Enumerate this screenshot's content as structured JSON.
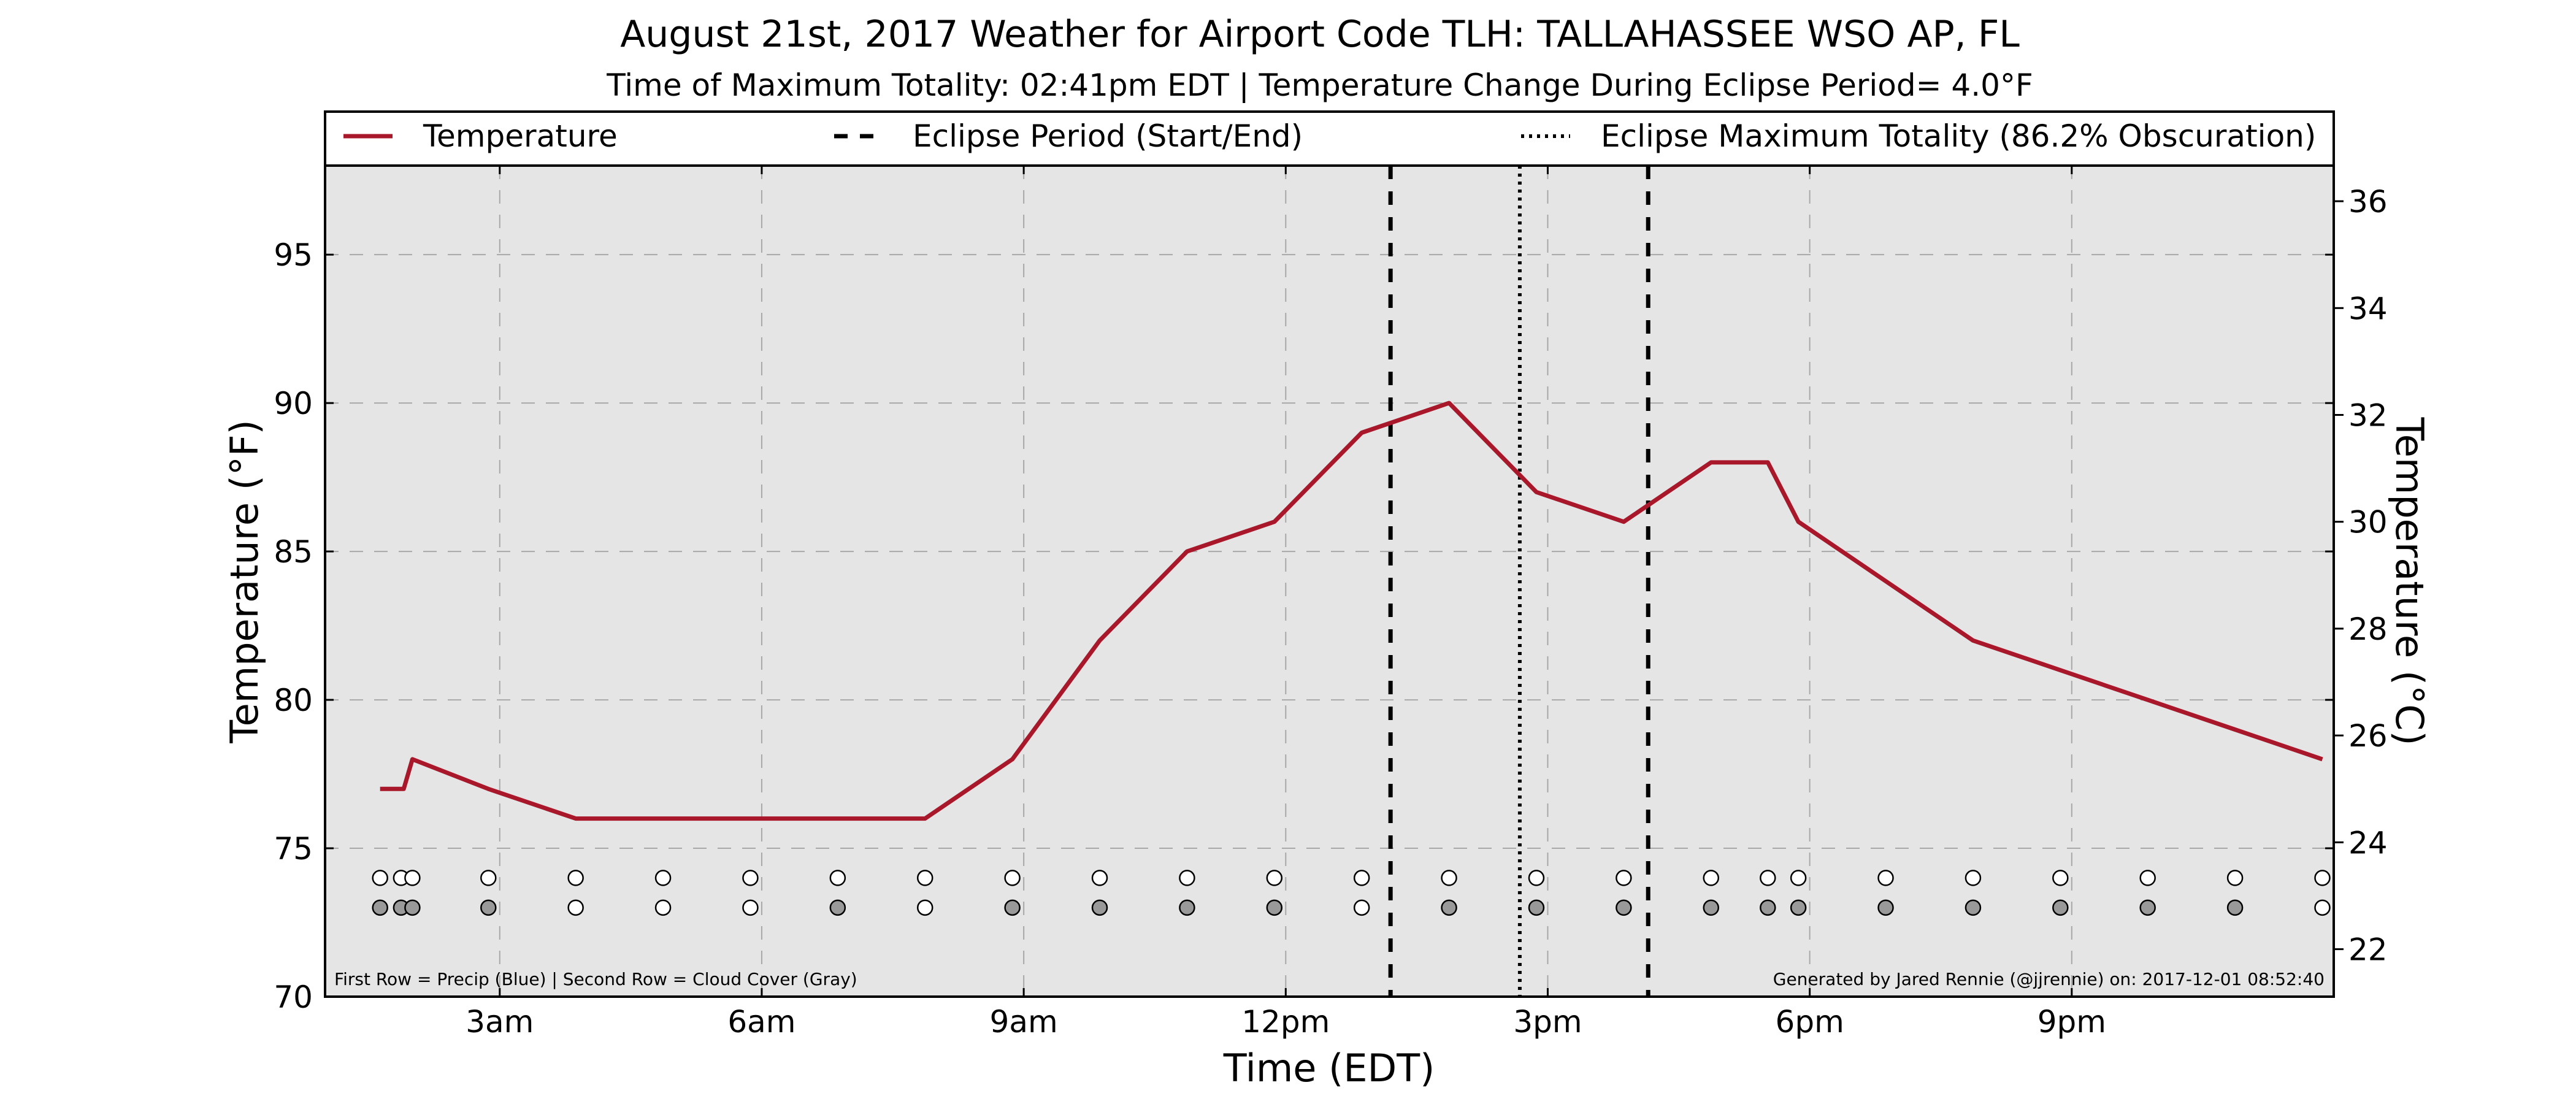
{
  "chart_data": {
    "type": "line",
    "title": "August 21st, 2017 Weather for Airport Code TLH: TALLAHASSEE WSO AP, FL",
    "subtitle": "Time of Maximum Totality: 02:41pm EDT | Temperature Change During Eclipse Period= 4.0°F",
    "xlabel": "Time (EDT)",
    "ylabel_left": "Temperature (°F)",
    "ylabel_right": "Temperature (°C)",
    "xlim_hours": [
      1.0,
      24.0
    ],
    "ylim_f": [
      70,
      98
    ],
    "x_ticks": [
      {
        "hour": 3,
        "label": "3am"
      },
      {
        "hour": 6,
        "label": "6am"
      },
      {
        "hour": 9,
        "label": "9am"
      },
      {
        "hour": 12,
        "label": "12pm"
      },
      {
        "hour": 15,
        "label": "3pm"
      },
      {
        "hour": 18,
        "label": "6pm"
      },
      {
        "hour": 21,
        "label": "9pm"
      }
    ],
    "y_ticks_left": [
      {
        "v": 70,
        "label": "70"
      },
      {
        "v": 75,
        "label": "75"
      },
      {
        "v": 80,
        "label": "80"
      },
      {
        "v": 85,
        "label": "85"
      },
      {
        "v": 90,
        "label": "90"
      },
      {
        "v": 95,
        "label": "95"
      }
    ],
    "y_ticks_right": [
      {
        "v": 22,
        "label": "22"
      },
      {
        "v": 24,
        "label": "24"
      },
      {
        "v": 26,
        "label": "26"
      },
      {
        "v": 28,
        "label": "28"
      },
      {
        "v": 30,
        "label": "30"
      },
      {
        "v": 32,
        "label": "32"
      },
      {
        "v": 34,
        "label": "34"
      },
      {
        "v": 36,
        "label": "36"
      }
    ],
    "grid": true,
    "legend_position": "top",
    "colors": {
      "temperature": "#a9172a",
      "plot_bg": "#e5e5e5",
      "cloud_fill": "#999999",
      "clear_fill": "#ffffff"
    },
    "series": [
      {
        "name": "Temperature",
        "points": [
          [
            1.63,
            77
          ],
          [
            1.9,
            77
          ],
          [
            2.0,
            78
          ],
          [
            2.87,
            77
          ],
          [
            3.87,
            76
          ],
          [
            4.87,
            76
          ],
          [
            5.87,
            76
          ],
          [
            6.87,
            76
          ],
          [
            7.87,
            76
          ],
          [
            8.87,
            78
          ],
          [
            9.87,
            82
          ],
          [
            10.87,
            85
          ],
          [
            11.87,
            86
          ],
          [
            12.87,
            89
          ],
          [
            13.87,
            90
          ],
          [
            14.87,
            87
          ],
          [
            15.87,
            86
          ],
          [
            16.87,
            88
          ],
          [
            17.52,
            88
          ],
          [
            17.87,
            86
          ],
          [
            18.87,
            84
          ],
          [
            19.87,
            82
          ],
          [
            20.87,
            81
          ],
          [
            21.87,
            80
          ],
          [
            22.87,
            79
          ],
          [
            23.87,
            78
          ]
        ]
      }
    ],
    "eclipse": {
      "start_hour": 13.2,
      "end_hour": 16.15,
      "max_hour": 14.68,
      "legend_period": "Eclipse Period (Start/End)",
      "legend_max": "Eclipse Maximum Totality (86.2% Obscuration)"
    },
    "markers": {
      "row1_precip_y": 74.0,
      "row2_cloud_y": 73.0,
      "points": [
        {
          "hour": 1.63,
          "precip": false,
          "cloud": true
        },
        {
          "hour": 1.87,
          "precip": false,
          "cloud": true
        },
        {
          "hour": 2.0,
          "precip": false,
          "cloud": true
        },
        {
          "hour": 2.87,
          "precip": false,
          "cloud": true
        },
        {
          "hour": 3.87,
          "precip": false,
          "cloud": false
        },
        {
          "hour": 4.87,
          "precip": false,
          "cloud": false
        },
        {
          "hour": 5.87,
          "precip": false,
          "cloud": false
        },
        {
          "hour": 6.87,
          "precip": false,
          "cloud": true
        },
        {
          "hour": 7.87,
          "precip": false,
          "cloud": false
        },
        {
          "hour": 8.87,
          "precip": false,
          "cloud": true
        },
        {
          "hour": 9.87,
          "precip": false,
          "cloud": true
        },
        {
          "hour": 10.87,
          "precip": false,
          "cloud": true
        },
        {
          "hour": 11.87,
          "precip": false,
          "cloud": true
        },
        {
          "hour": 12.87,
          "precip": false,
          "cloud": false
        },
        {
          "hour": 13.87,
          "precip": false,
          "cloud": true
        },
        {
          "hour": 14.87,
          "precip": false,
          "cloud": true
        },
        {
          "hour": 15.87,
          "precip": false,
          "cloud": true
        },
        {
          "hour": 16.87,
          "precip": false,
          "cloud": true
        },
        {
          "hour": 17.52,
          "precip": false,
          "cloud": true
        },
        {
          "hour": 17.87,
          "precip": false,
          "cloud": true
        },
        {
          "hour": 18.87,
          "precip": false,
          "cloud": true
        },
        {
          "hour": 19.87,
          "precip": false,
          "cloud": true
        },
        {
          "hour": 20.87,
          "precip": false,
          "cloud": true
        },
        {
          "hour": 21.87,
          "precip": false,
          "cloud": true
        },
        {
          "hour": 22.87,
          "precip": false,
          "cloud": true
        },
        {
          "hour": 23.87,
          "precip": false,
          "cloud": false
        }
      ]
    },
    "legend_temperature": "Temperature",
    "footnote_left": "First Row = Precip (Blue) | Second Row = Cloud Cover (Gray)",
    "footnote_right": "Generated by Jared Rennie (@jjrennie) on: 2017-12-01 08:52:40"
  }
}
